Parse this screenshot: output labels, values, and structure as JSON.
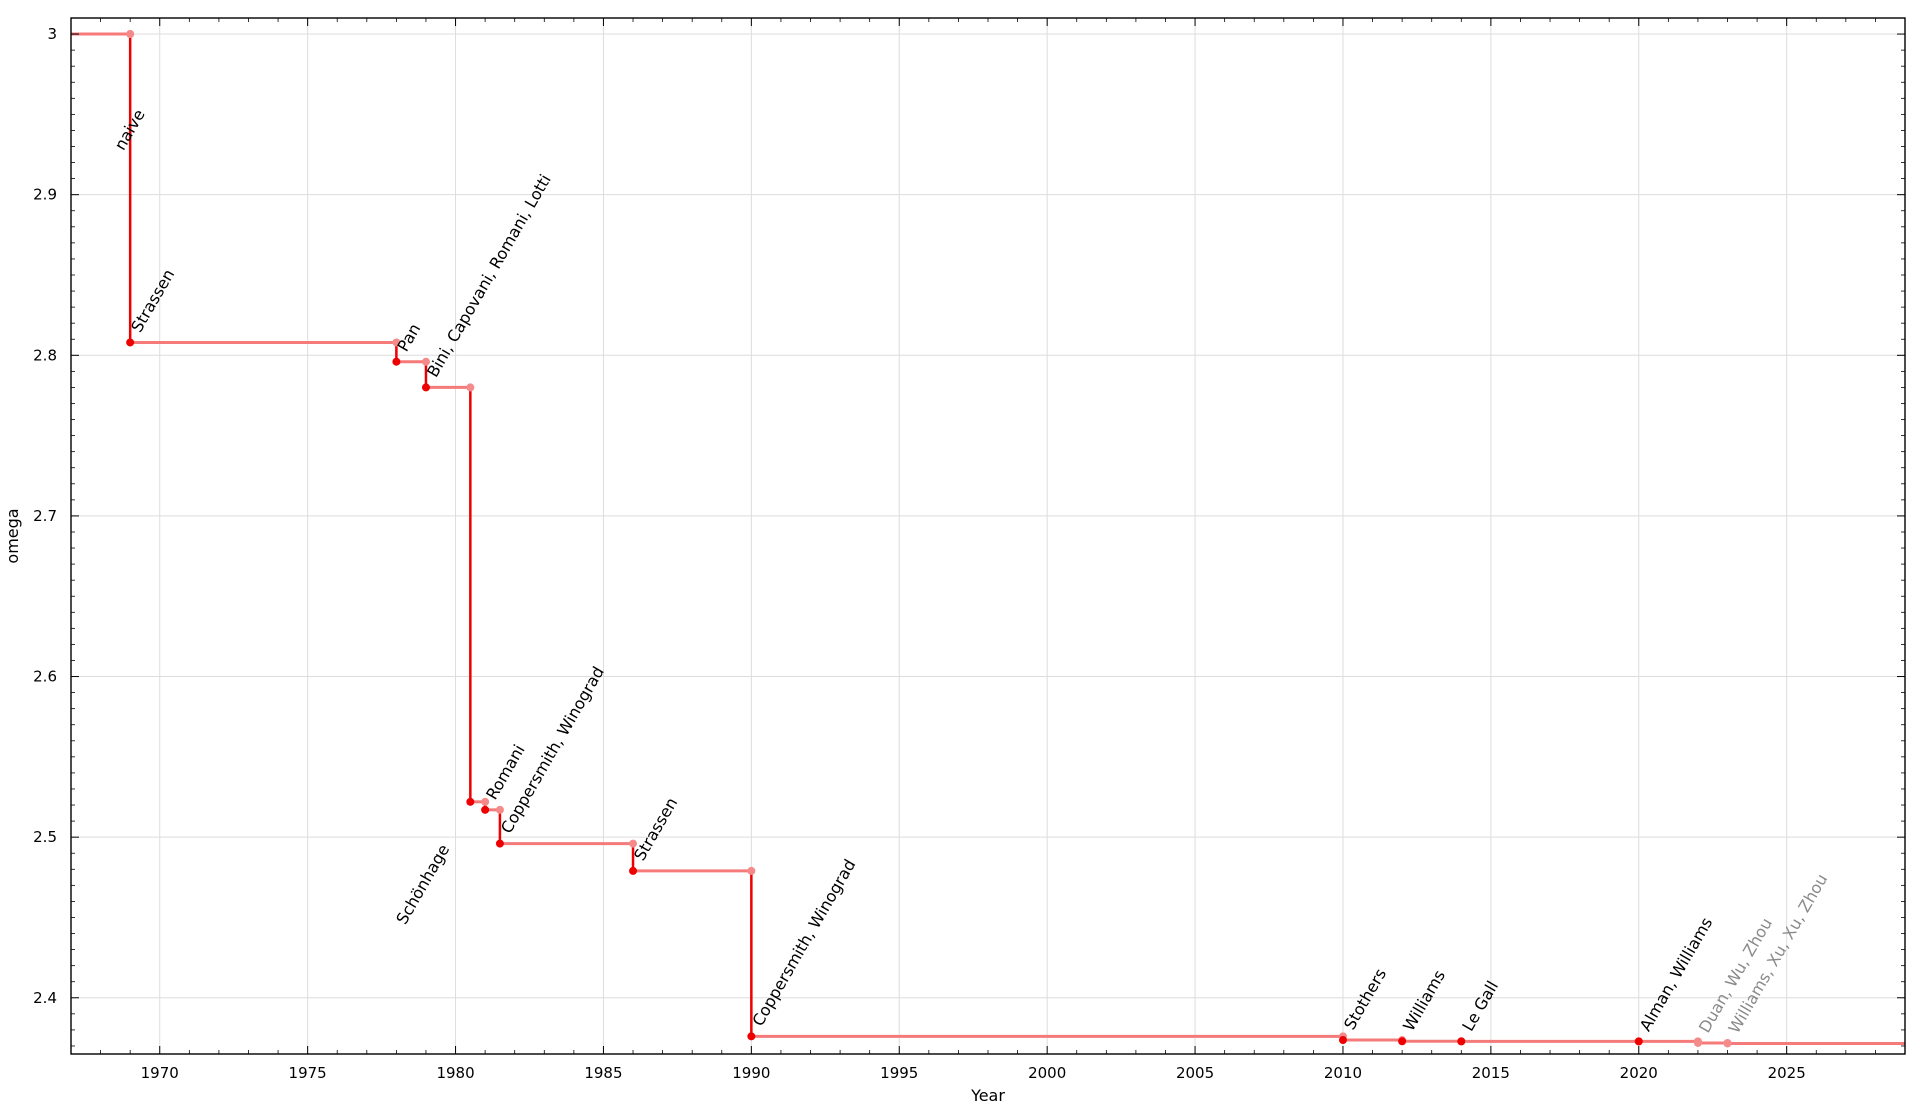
{
  "chart_data": {
    "type": "line",
    "subtype": "step",
    "title": "",
    "xlabel": "Year",
    "ylabel": "omega",
    "xlim": [
      1967,
      2029
    ],
    "ylim": [
      2.365,
      3.01
    ],
    "grid": true,
    "x_ticks": [
      "1970",
      "1975",
      "1980",
      "1985",
      "1990",
      "1995",
      "2000",
      "2005",
      "2010",
      "2015",
      "2020",
      "2025"
    ],
    "y_ticks": [
      "2.4",
      "2.5",
      "2.6",
      "2.7",
      "2.8",
      "2.9",
      "3"
    ],
    "series": [
      {
        "points": [
          {
            "x": 1969,
            "y": 3.0,
            "label": "naive"
          },
          {
            "x": 1969,
            "y": 2.808,
            "label": "Strassen"
          },
          {
            "x": 1978,
            "y": 2.796,
            "label": "Pan"
          },
          {
            "x": 1979,
            "y": 2.78,
            "label": "Bini, Capovani, Romani, Lotti"
          },
          {
            "x": 1980.5,
            "y": 2.522,
            "label": "Schönhage"
          },
          {
            "x": 1981,
            "y": 2.517,
            "label": "Romani"
          },
          {
            "x": 1981.5,
            "y": 2.496,
            "label": "Coppersmith, Winograd"
          },
          {
            "x": 1986,
            "y": 2.479,
            "label": "Strassen"
          },
          {
            "x": 1990,
            "y": 2.376,
            "label": "Coppersmith, Winograd"
          },
          {
            "x": 2010,
            "y": 2.3737,
            "label": "Stothers"
          },
          {
            "x": 2012,
            "y": 2.3729,
            "label": "Williams"
          },
          {
            "x": 2014,
            "y": 2.3728639,
            "label": "Le Gall"
          },
          {
            "x": 2020,
            "y": 2.3728596,
            "label": "Alman, Williams"
          },
          {
            "x": 2022,
            "y": 2.371866,
            "label": "Duan, Wu, Zhou"
          },
          {
            "x": 2023,
            "y": 2.371552,
            "label": "Williams, Xu, Xu, Zhou"
          }
        ]
      }
    ],
    "colors": {
      "vertical": "#ee0000",
      "horizontal": "#f57a7a",
      "marker_new": "#ee0000",
      "marker_old": "#f58a8a",
      "grid": "#dddddd",
      "muted_label": "#8a8a8a"
    }
  }
}
